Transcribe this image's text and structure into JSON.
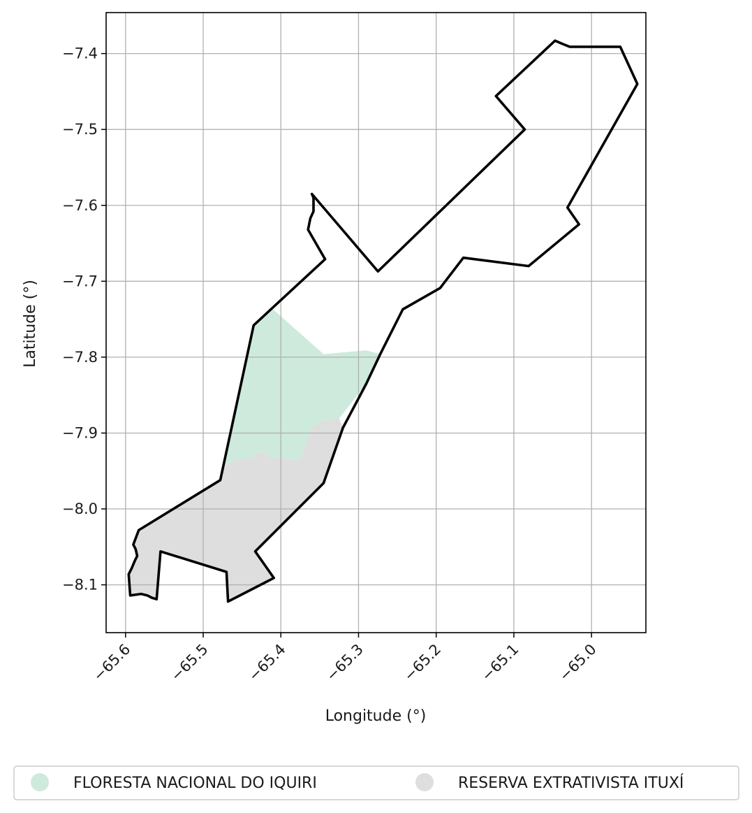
{
  "map": {
    "xlabel": "Longitude (°)",
    "ylabel": "Latitude (°)",
    "xlim": [
      -65.625,
      -64.93
    ],
    "ylim": [
      -8.163,
      -7.346
    ],
    "xticks": [
      {
        "value": -65.6,
        "label": "−65.6"
      },
      {
        "value": -65.5,
        "label": "−65.5"
      },
      {
        "value": -65.4,
        "label": "−65.4"
      },
      {
        "value": -65.3,
        "label": "−65.3"
      },
      {
        "value": -65.2,
        "label": "−65.2"
      },
      {
        "value": -65.1,
        "label": "−65.1"
      },
      {
        "value": -65.0,
        "label": "−65.0"
      }
    ],
    "yticks": [
      {
        "value": -7.4,
        "label": "−7.4"
      },
      {
        "value": -7.5,
        "label": "−7.5"
      },
      {
        "value": -7.6,
        "label": "−7.6"
      },
      {
        "value": -7.7,
        "label": "−7.7"
      },
      {
        "value": -7.8,
        "label": "−7.8"
      },
      {
        "value": -7.9,
        "label": "−7.9"
      },
      {
        "value": -8.0,
        "label": "−8.0"
      },
      {
        "value": -8.1,
        "label": "−8.1"
      }
    ],
    "grid": true,
    "legend_position": "bottom",
    "boundary_color": "#000000",
    "grid_color": "#b0b0b0"
  },
  "chart_data": {
    "type": "map",
    "boundary": [
      [
        -65.047,
        -7.383
      ],
      [
        -65.038,
        -7.387
      ],
      [
        -65.028,
        -7.391
      ],
      [
        -64.963,
        -7.391
      ],
      [
        -64.941,
        -7.44
      ],
      [
        -65.031,
        -7.603
      ],
      [
        -65.016,
        -7.625
      ],
      [
        -65.081,
        -7.68
      ],
      [
        -65.165,
        -7.669
      ],
      [
        -65.195,
        -7.709
      ],
      [
        -65.243,
        -7.737
      ],
      [
        -65.272,
        -7.796
      ],
      [
        -65.29,
        -7.835
      ],
      [
        -65.32,
        -7.893
      ],
      [
        -65.345,
        -7.966
      ],
      [
        -65.433,
        -8.056
      ],
      [
        -65.409,
        -8.091
      ],
      [
        -65.468,
        -8.122
      ],
      [
        -65.47,
        -8.083
      ],
      [
        -65.555,
        -8.056
      ],
      [
        -65.56,
        -8.119
      ],
      [
        -65.566,
        -8.117
      ],
      [
        -65.572,
        -8.114
      ],
      [
        -65.58,
        -8.112
      ],
      [
        -65.594,
        -8.114
      ],
      [
        -65.596,
        -8.086
      ],
      [
        -65.592,
        -8.078
      ],
      [
        -65.588,
        -8.068
      ],
      [
        -65.585,
        -8.062
      ],
      [
        -65.587,
        -8.053
      ],
      [
        -65.59,
        -8.047
      ],
      [
        -65.583,
        -8.028
      ],
      [
        -65.478,
        -7.962
      ],
      [
        -65.435,
        -7.758
      ],
      [
        -65.343,
        -7.671
      ],
      [
        -65.365,
        -7.632
      ],
      [
        -65.362,
        -7.617
      ],
      [
        -65.358,
        -7.608
      ],
      [
        -65.358,
        -7.59
      ],
      [
        -65.36,
        -7.585
      ],
      [
        -65.275,
        -7.687
      ],
      [
        -65.086,
        -7.5
      ],
      [
        -65.123,
        -7.456
      ]
    ],
    "areas": [
      {
        "name": "FLORESTA NACIONAL DO IQUIRI",
        "color": "#cdeadd",
        "polygon": [
          [
            -65.41,
            -7.737
          ],
          [
            -65.435,
            -7.758
          ],
          [
            -65.475,
            -7.945
          ],
          [
            -65.462,
            -7.936
          ],
          [
            -65.44,
            -7.933
          ],
          [
            -65.425,
            -7.925
          ],
          [
            -65.41,
            -7.933
          ],
          [
            -65.375,
            -7.935
          ],
          [
            -65.36,
            -7.893
          ],
          [
            -65.345,
            -7.883
          ],
          [
            -65.325,
            -7.881
          ],
          [
            -65.29,
            -7.835
          ],
          [
            -65.272,
            -7.796
          ],
          [
            -65.29,
            -7.791
          ],
          [
            -65.345,
            -7.796
          ]
        ]
      },
      {
        "name": "RESERVA EXTRATIVISTA ITUXÍ",
        "color": "#dedede",
        "polygon": [
          [
            -65.475,
            -7.945
          ],
          [
            -65.462,
            -7.936
          ],
          [
            -65.44,
            -7.933
          ],
          [
            -65.425,
            -7.925
          ],
          [
            -65.41,
            -7.933
          ],
          [
            -65.375,
            -7.935
          ],
          [
            -65.36,
            -7.893
          ],
          [
            -65.345,
            -7.883
          ],
          [
            -65.325,
            -7.881
          ],
          [
            -65.32,
            -7.893
          ],
          [
            -65.345,
            -7.966
          ],
          [
            -65.433,
            -8.056
          ],
          [
            -65.409,
            -8.091
          ],
          [
            -65.468,
            -8.122
          ],
          [
            -65.47,
            -8.083
          ],
          [
            -65.555,
            -8.056
          ],
          [
            -65.56,
            -8.119
          ],
          [
            -65.566,
            -8.117
          ],
          [
            -65.572,
            -8.114
          ],
          [
            -65.58,
            -8.112
          ],
          [
            -65.594,
            -8.114
          ],
          [
            -65.596,
            -8.086
          ],
          [
            -65.592,
            -8.078
          ],
          [
            -65.588,
            -8.068
          ],
          [
            -65.585,
            -8.062
          ],
          [
            -65.587,
            -8.053
          ],
          [
            -65.59,
            -8.047
          ],
          [
            -65.583,
            -8.028
          ],
          [
            -65.478,
            -7.962
          ]
        ]
      }
    ]
  },
  "legend": {
    "items": [
      {
        "label": "FLORESTA NACIONAL DO IQUIRI",
        "color": "#cdeadd"
      },
      {
        "label": "RESERVA EXTRATIVISTA ITUXÍ",
        "color": "#dedede"
      }
    ]
  }
}
